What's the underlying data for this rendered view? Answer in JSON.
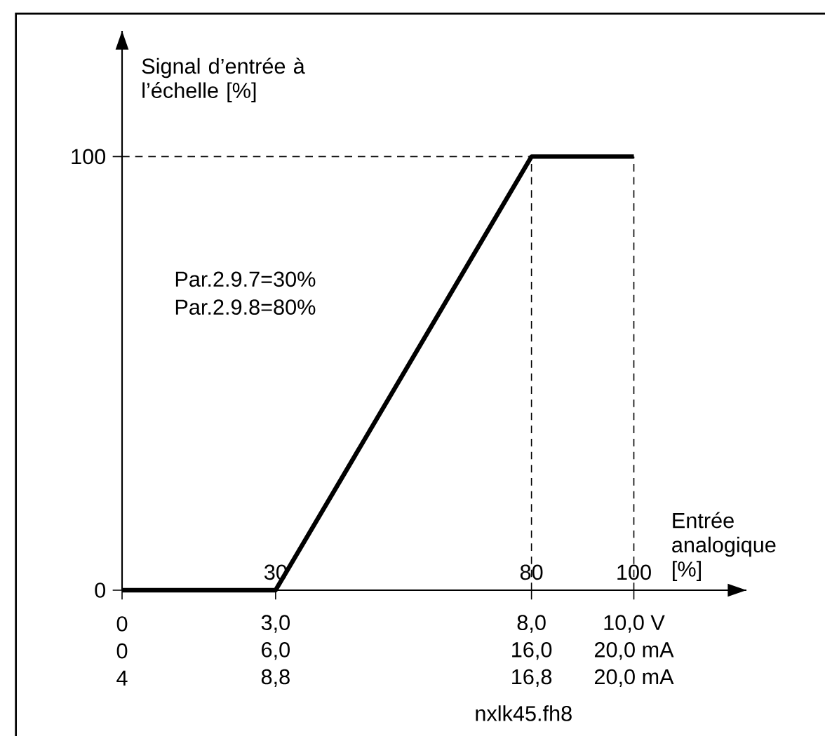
{
  "chart_data": {
    "type": "line",
    "xlabel": "Entrée analogique [%]",
    "ylabel": "Signal d’entrée à l’échelle [%]",
    "x": [
      0,
      30,
      80,
      100
    ],
    "series": [
      {
        "color": "#000000",
        "values": [
          0,
          0,
          100,
          100
        ]
      }
    ],
    "xlim": [
      0,
      122
    ],
    "ylim": [
      0,
      129
    ],
    "xticks": [
      {
        "value": 0,
        "label": null
      },
      30,
      80,
      100
    ],
    "yticks": [
      0,
      100
    ],
    "grid": false,
    "marker": "none",
    "line_style": "solid",
    "ref_lines": [
      {
        "axis": "x",
        "value": 80,
        "color": "#000000",
        "line_style": "dashed"
      },
      {
        "axis": "x",
        "value": 100,
        "color": "#000000",
        "line_style": "dashed"
      },
      {
        "axis": "y",
        "value": 100,
        "color": "#000000",
        "line_style": "dashed"
      }
    ],
    "annotations": [
      "Par.2.9.7=30%",
      "Par.2.9.8=80%",
      "0",
      "0",
      "4",
      "3,0",
      "6,0",
      "8,8",
      "8,0",
      "16,0",
      "16,8",
      "10,0 V",
      "20,0 mA",
      "20,0 mA",
      "nxlk45.fh8"
    ]
  }
}
